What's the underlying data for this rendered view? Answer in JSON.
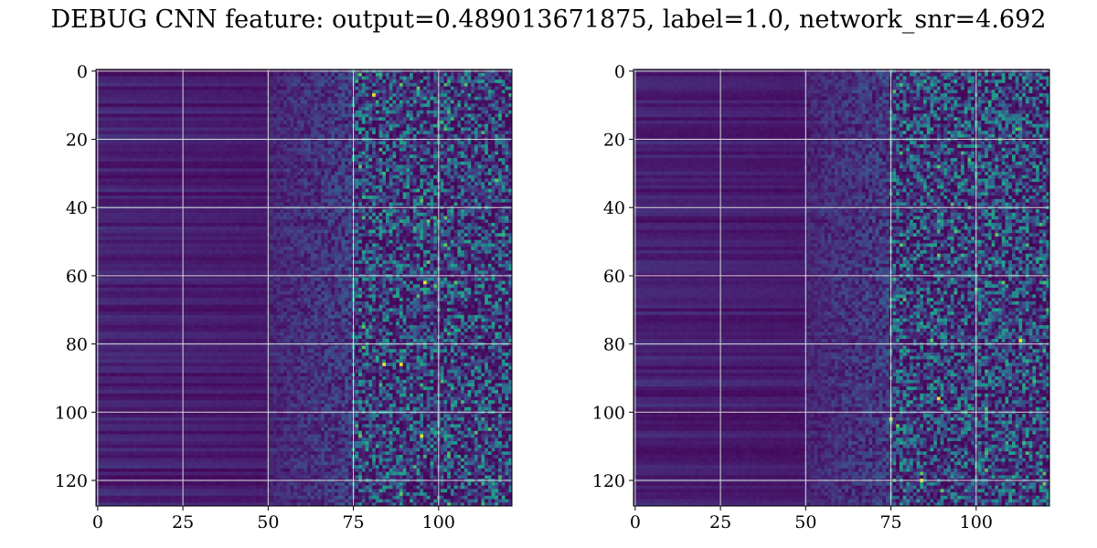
{
  "figure": {
    "title": "DEBUG CNN feature: output=0.489013671875, label=1.0, network_snr=4.692"
  },
  "chart_data": [
    {
      "type": "heatmap",
      "title": "",
      "xlabel": "",
      "ylabel": "",
      "rows": 128,
      "cols": 122,
      "xlim": [
        -0.5,
        121.5
      ],
      "ylim": [
        127.5,
        -0.5
      ],
      "y_inverted": true,
      "xticks": [
        0,
        25,
        50,
        75,
        100
      ],
      "yticks": [
        0,
        20,
        40,
        60,
        80,
        100,
        120
      ],
      "grid": true,
      "colormap": "viridis",
      "description_of_values": "columns 0-50 smooth low values with horizontal banding; columns 50-75 transition; columns 75-121 noisy speckled higher values",
      "hot_spots": [
        [
          81,
          7
        ],
        [
          96,
          62
        ],
        [
          95,
          107
        ],
        [
          89,
          86
        ],
        [
          84,
          86
        ]
      ]
    },
    {
      "type": "heatmap",
      "title": "",
      "xlabel": "",
      "ylabel": "",
      "rows": 128,
      "cols": 122,
      "xlim": [
        -0.5,
        121.5
      ],
      "ylim": [
        127.5,
        -0.5
      ],
      "y_inverted": true,
      "xticks": [
        0,
        25,
        50,
        75,
        100
      ],
      "yticks": [
        0,
        20,
        40,
        60,
        80,
        100,
        120
      ],
      "grid": true,
      "colormap": "viridis",
      "description_of_values": "columns 0-50 smooth low values with horizontal banding; columns 50-75 transition; columns 75-121 noisy speckled higher values",
      "hot_spots": [
        [
          113,
          79
        ],
        [
          89,
          96
        ],
        [
          84,
          120
        ],
        [
          75,
          102
        ]
      ]
    }
  ]
}
